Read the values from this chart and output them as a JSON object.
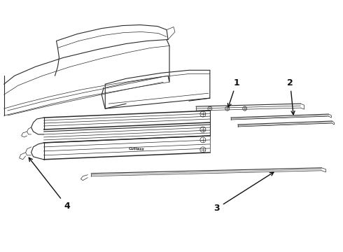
{
  "background_color": "#ffffff",
  "line_color": "#2a2a2a",
  "figure_width": 4.9,
  "figure_height": 3.6,
  "dpi": 100
}
